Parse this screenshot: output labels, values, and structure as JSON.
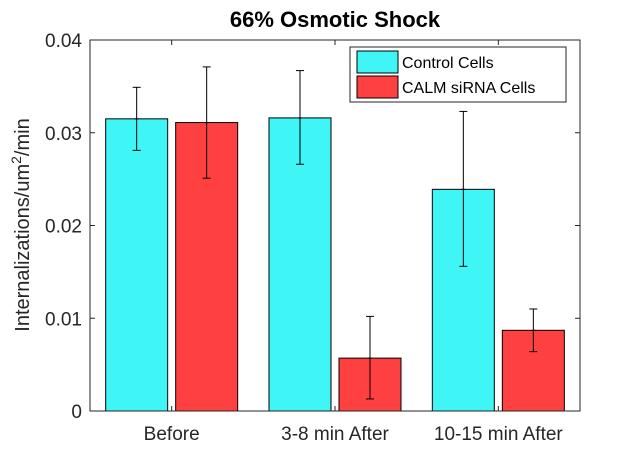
{
  "chart_data": {
    "type": "bar",
    "title": "66% Osmotic Shock",
    "xlabel": "",
    "ylabel_prefix": "Internalizations/um",
    "ylabel_sup": "2",
    "ylabel_suffix": "/min",
    "categories": [
      "Before",
      "3-8 min After",
      "10-15 min After"
    ],
    "ylim": [
      0,
      0.04
    ],
    "yticks": [
      0,
      0.01,
      0.02,
      0.03,
      0.04
    ],
    "ytick_labels": [
      "0",
      "0.01",
      "0.02",
      "0.03",
      "0.04"
    ],
    "legend_position": "top-right",
    "grid": false,
    "series": [
      {
        "name": "Control Cells",
        "color": "#3ff5f5",
        "values": [
          0.0315,
          0.0316,
          0.0239
        ],
        "err_low": [
          0.0281,
          0.0266,
          0.0156
        ],
        "err_high": [
          0.0349,
          0.0367,
          0.0323
        ]
      },
      {
        "name": "CALM siRNA Cells",
        "color": "#ff4040",
        "values": [
          0.0311,
          0.0057,
          0.0087
        ],
        "err_low": [
          0.0251,
          0.0013,
          0.0064
        ],
        "err_high": [
          0.0371,
          0.0102,
          0.011
        ]
      }
    ]
  }
}
